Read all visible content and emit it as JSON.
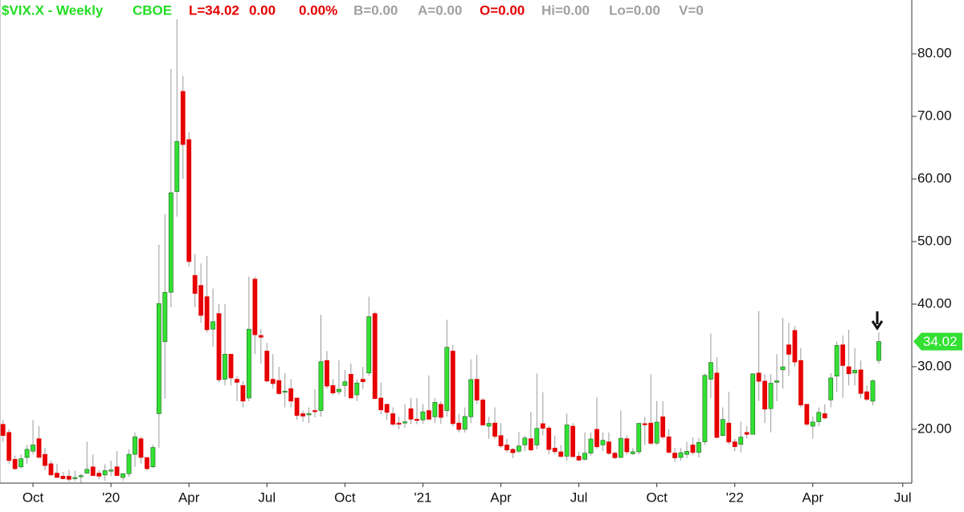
{
  "chart_data": {
    "type": "candlestick",
    "header": [
      {
        "text": "$VIX.X - Weekly",
        "color": "#22dd22"
      },
      {
        "text": "CBOE",
        "color": "#22dd22"
      },
      {
        "text": "L=34.02",
        "color": "#e60000"
      },
      {
        "text": "0.00",
        "color": "#e60000"
      },
      {
        "text": "0.00%",
        "color": "#e60000"
      },
      {
        "text": "B=0.00",
        "color": "#a0a0a0"
      },
      {
        "text": "A=0.00",
        "color": "#a0a0a0"
      },
      {
        "text": "O=0.00",
        "color": "#e60000"
      },
      {
        "text": "Hi=0.00",
        "color": "#a0a0a0"
      },
      {
        "text": "Lo=0.00",
        "color": "#a0a0a0"
      },
      {
        "text": "V=0",
        "color": "#a0a0a0"
      }
    ],
    "categories": [
      null,
      null,
      null,
      null,
      null,
      "Oct",
      null,
      null,
      null,
      null,
      null,
      null,
      null,
      null,
      null,
      null,
      null,
      null,
      "'20",
      null,
      null,
      null,
      null,
      null,
      null,
      null,
      null,
      null,
      null,
      null,
      null,
      "Apr",
      null,
      null,
      null,
      null,
      null,
      null,
      null,
      null,
      null,
      null,
      null,
      null,
      "Jul",
      null,
      null,
      null,
      null,
      null,
      null,
      null,
      null,
      null,
      null,
      null,
      null,
      "Oct",
      null,
      null,
      null,
      null,
      null,
      null,
      null,
      null,
      null,
      null,
      null,
      null,
      "'21",
      null,
      null,
      null,
      null,
      null,
      null,
      null,
      null,
      null,
      null,
      null,
      null,
      "Apr",
      null,
      null,
      null,
      null,
      null,
      null,
      null,
      null,
      null,
      null,
      null,
      null,
      "Jul",
      null,
      null,
      null,
      null,
      null,
      null,
      null,
      null,
      null,
      null,
      null,
      null,
      "Oct",
      null,
      null,
      null,
      null,
      null,
      null,
      null,
      null,
      null,
      null,
      null,
      null,
      "'22",
      null,
      null,
      null,
      null,
      null,
      null,
      null,
      null,
      null,
      null,
      null,
      null,
      "Apr",
      null,
      null,
      null,
      null,
      null,
      null,
      null,
      null,
      null,
      null,
      null,
      null,
      null,
      null,
      "Jul",
      null
    ],
    "open": [
      20.8,
      19.5,
      15.2,
      14.0,
      15.5,
      16.5,
      18.5,
      16,
      14.5,
      13,
      12.5,
      12.5,
      12.3,
      12.6,
      13,
      14,
      13,
      12.7,
      13.5,
      14,
      12.3,
      12.9,
      16,
      18.5,
      15.5,
      14,
      22.5,
      34,
      41.9,
      58,
      74,
      66.3,
      44.6,
      43,
      41.2,
      36,
      38.5,
      28,
      32,
      28,
      27,
      25,
      44,
      35,
      32.5,
      28,
      27.8,
      26,
      26.5,
      25,
      22.5,
      22.5,
      23,
      23,
      31,
      27,
      26,
      27,
      28.8,
      25.5,
      28,
      29,
      38.5,
      25,
      24,
      22.5,
      21,
      21,
      23.3,
      21.6,
      21.5,
      23,
      22,
      24,
      23,
      32.5,
      21,
      20,
      22,
      28,
      24.7,
      20.5,
      21,
      19,
      17.5,
      16.8,
      16.5,
      17.5,
      18.5,
      17.5,
      20.9,
      20.2,
      17,
      16.4,
      15.7,
      20.5,
      15.7,
      15.2,
      16.2,
      20,
      17.5,
      18,
      16.2,
      15.5,
      18.5,
      16.1,
      16.4,
      20.9,
      21,
      17.8,
      22,
      18.8,
      16.2,
      15.5,
      16.0,
      17.5,
      16.3,
      18,
      28,
      29,
      19,
      21,
      18,
      17.6,
      19.5,
      19.2,
      29,
      27.7,
      23.3,
      27.5,
      29.5,
      33.5,
      35.8,
      31,
      24,
      20.5,
      21.2,
      22.5,
      24.7,
      28.5,
      33.5,
      30,
      29,
      29.5,
      26,
      24.5,
      31,
      null,
      null,
      null,
      null,
      null
    ],
    "high": [
      21.5,
      20,
      15.8,
      16.0,
      17.5,
      21.5,
      20.5,
      17,
      15,
      14.5,
      13.2,
      13.5,
      13.4,
      12.9,
      18,
      16,
      13.5,
      14.4,
      15,
      16.5,
      13,
      16.8,
      19.5,
      18.8,
      15.5,
      17.5,
      49.5,
      54.4,
      77.6,
      85.5,
      76.5,
      67.5,
      48,
      46.5,
      47.7,
      42.5,
      40,
      40,
      32,
      28.5,
      27.7,
      44.4,
      44.4,
      36,
      33.8,
      32,
      30,
      29,
      28,
      25,
      23,
      23.5,
      26.4,
      38.3,
      32.5,
      28,
      31,
      29.5,
      30.5,
      28,
      30,
      41.2,
      38.8,
      27.5,
      24,
      23.5,
      22,
      24,
      25,
      25,
      24,
      28.6,
      25,
      24.5,
      37.5,
      33.5,
      22.5,
      23.5,
      31.2,
      31.9,
      25,
      22,
      23.5,
      21,
      18.5,
      17,
      19.6,
      19,
      22.8,
      28.9,
      25.9,
      20.5,
      19,
      17.5,
      22.5,
      21,
      16.4,
      19.5,
      19.5,
      25.1,
      19.5,
      19.5,
      16.4,
      23,
      19,
      17,
      21,
      22,
      28.8,
      24.5,
      24.5,
      20,
      17,
      17,
      18,
      18.7,
      18.6,
      28.9,
      35.3,
      31.5,
      23.5,
      26,
      18.5,
      21.2,
      20.5,
      29,
      38.9,
      28.8,
      28.8,
      32,
      37.8,
      37,
      36.5,
      33,
      24,
      22,
      23.5,
      24,
      29,
      34,
      35,
      35.9,
      33,
      31,
      27,
      28,
      35.5,
      null,
      null,
      null,
      null,
      null
    ],
    "low": [
      18.0,
      14.5,
      13.5,
      13.7,
      14.5,
      16,
      15.5,
      13.5,
      12.6,
      12.3,
      12.0,
      11.6,
      11.8,
      11.5,
      12.9,
      12.5,
      12.0,
      11.8,
      12.5,
      12.6,
      11.8,
      12.4,
      14,
      14.5,
      13.4,
      13.8,
      17,
      24.9,
      39.5,
      54,
      60,
      46,
      39.5,
      37,
      35.5,
      33.2,
      27.5,
      27,
      27,
      24.5,
      23.5,
      24.5,
      32,
      30.5,
      27.5,
      26.5,
      25.5,
      23.5,
      23.5,
      21.5,
      21.2,
      21,
      21.9,
      22,
      26.5,
      25.5,
      25.5,
      25.2,
      25.0,
      24.5,
      26.5,
      28.5,
      24.8,
      22.4,
      21.5,
      20.5,
      20,
      20.2,
      20.8,
      20.8,
      20.9,
      21.5,
      21,
      20.9,
      22,
      20.5,
      19.5,
      19.5,
      21,
      24,
      20.5,
      18.5,
      18.5,
      17,
      16.3,
      15.4,
      16.2,
      16.5,
      16.5,
      16.8,
      19,
      16,
      16,
      15.5,
      15,
      15.6,
      14.9,
      15,
      15.8,
      16.9,
      16.5,
      15.9,
      15.2,
      15.4,
      16,
      15.9,
      16,
      17.5,
      17.5,
      17.5,
      18.4,
      16.2,
      14.8,
      15,
      15.4,
      15.9,
      15.5,
      17.5,
      25,
      18.6,
      18.9,
      17.6,
      16.5,
      16.3,
      18.5,
      19.2,
      24.5,
      21,
      19.5,
      24.5,
      26.5,
      28.5,
      30,
      23.5,
      20.5,
      18.5,
      20.5,
      21.6,
      23.5,
      26,
      25,
      27,
      27,
      25,
      24.5,
      23.8,
      30.5,
      null,
      null,
      null,
      null,
      null
    ],
    "close": [
      19.0,
      15.0,
      13.7,
      15.3,
      16.8,
      17.5,
      15.5,
      14.2,
      12.7,
      12.3,
      12.1,
      12.0,
      12.3,
      12.6,
      13.6,
      12.6,
      12.5,
      13.4,
      13.5,
      12.6,
      12.9,
      16.0,
      18.8,
      15.5,
      13.7,
      17.1,
      40.1,
      41.9,
      57.8,
      66,
      65.5,
      46.8,
      41.7,
      38.2,
      35.9,
      37.2,
      27.9,
      32,
      28.2,
      27.5,
      24.5,
      36,
      35.1,
      34.7,
      27.7,
      27.3,
      25.7,
      26.1,
      24.5,
      22.2,
      22.1,
      22.5,
      22.9,
      30.8,
      26.9,
      25.8,
      26.4,
      27.6,
      25.0,
      27.4,
      27.6,
      38.0,
      24.9,
      23.1,
      22.7,
      20.8,
      20.8,
      21.2,
      21.6,
      21.5,
      22.8,
      21.6,
      24.3,
      21.9,
      33.1,
      20.9,
      19.97,
      22.05,
      27.95,
      24.66,
      20.69,
      20.95,
      18.86,
      17.33,
      16.69,
      16.25,
      17.33,
      18.61,
      16.69,
      20.15,
      20.15,
      16.76,
      16.42,
      15.65,
      20.7,
      15.62,
      15.07,
      16.18,
      18.45,
      17.2,
      18.24,
      16.15,
      15.45,
      18.56,
      16.39,
      16.41,
      20.95,
      20.81,
      17.75,
      21.15,
      18.77,
      16.3,
      15.43,
      16.26,
      16.48,
      16.29,
      17.91,
      28.62,
      30.67,
      18.69,
      21.57,
      17.96,
      17.22,
      18.76,
      19.19,
      28.85,
      27.66,
      23.22,
      27.36,
      27.75,
      29.98,
      31.98,
      30.75,
      23.87,
      20.81,
      21.16,
      22.7,
      21.8,
      28.21,
      33.4,
      30.19,
      28.87,
      29.43,
      25.72,
      24.79,
      27.75,
      34.02,
      null,
      null,
      null,
      null,
      null
    ],
    "up_color": "#33e033",
    "down_color": "#e60000",
    "ylim": [
      11.4,
      88.6
    ],
    "yticks": [
      {
        "value": 20,
        "label": "20.00"
      },
      {
        "value": 30,
        "label": "30.00"
      },
      {
        "value": 40,
        "label": "40.00"
      },
      {
        "value": 50,
        "label": "50.00"
      },
      {
        "value": 60,
        "label": "60.00"
      },
      {
        "value": 70,
        "label": "70.00"
      },
      {
        "value": 80,
        "label": "80.00"
      }
    ]
  }
}
